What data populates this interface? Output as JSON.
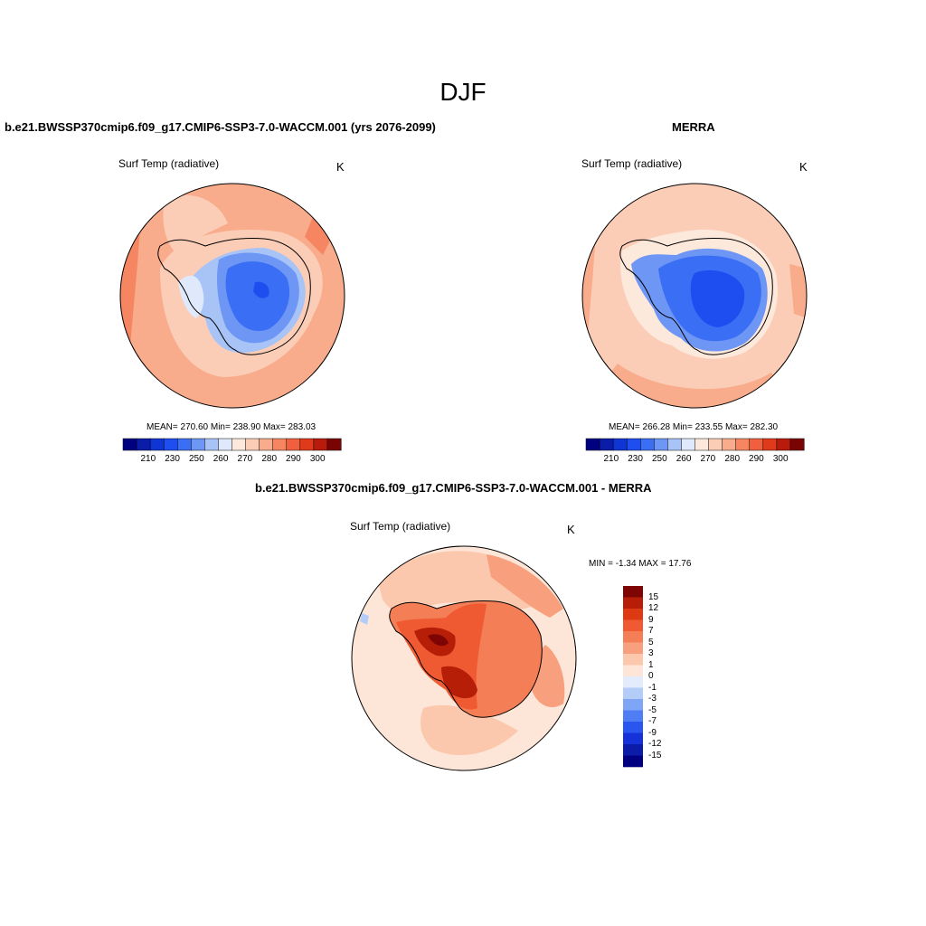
{
  "figure": {
    "season": "DJF"
  },
  "colors": {
    "abs_levels": [
      "#000080",
      "#0a1ca8",
      "#0f35d4",
      "#1e4ef0",
      "#3a6ef5",
      "#6d96f5",
      "#a8c4f7",
      "#dfe9fb",
      "#fde8dc",
      "#fbcdb6",
      "#f8ac8c",
      "#f58661",
      "#f1603e",
      "#e03a1c",
      "#b81b0b",
      "#7a0403"
    ],
    "diff_levels": [
      "#000080",
      "#0a1ca8",
      "#1432d8",
      "#2a56f0",
      "#4f7ef4",
      "#7fa6f6",
      "#b3cdf8",
      "#e2ecfb",
      "#fde6d8",
      "#fbc8ad",
      "#f8a07e",
      "#f47e55",
      "#ef5a32",
      "#dd3a14",
      "#b61e08",
      "#7e0503"
    ],
    "land_line": "#000000"
  },
  "panels": {
    "top_left": {
      "title": "b.e21.BWSSP370cmip6.f09_g17.CMIP6-SSP3-7.0-WACCM.001 (yrs 2076-2099)",
      "variable": "Surf Temp (radiative)",
      "unit": "K",
      "stats": "MEAN= 270.60  Min= 238.90  Max= 283.03",
      "colorbar_ticks": [
        "210",
        "230",
        "250",
        "260",
        "270",
        "280",
        "290",
        "300"
      ]
    },
    "top_right": {
      "title": "MERRA",
      "variable": "Surf Temp (radiative)",
      "unit": "K",
      "stats": "MEAN= 266.28  Min= 233.55  Max= 282.30",
      "colorbar_ticks": [
        "210",
        "230",
        "250",
        "260",
        "270",
        "280",
        "290",
        "300"
      ]
    },
    "bottom": {
      "title": "b.e21.BWSSP370cmip6.f09_g17.CMIP6-SSP3-7.0-WACCM.001 - MERRA",
      "variable": "Surf Temp (radiative)",
      "unit": "K",
      "stats": "MIN =  -1.34 MAX =  17.76",
      "colorbar_ticks": [
        "15",
        "12",
        "9",
        "7",
        "5",
        "3",
        "1",
        "0",
        "-1",
        "-3",
        "-5",
        "-7",
        "-9",
        "-12",
        "-15"
      ]
    }
  }
}
